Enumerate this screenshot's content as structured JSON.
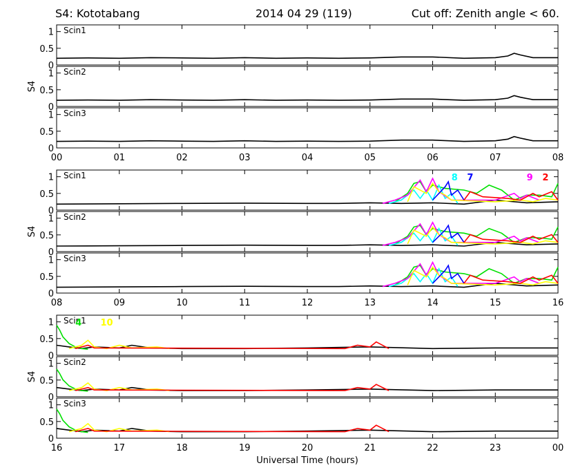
{
  "header": {
    "left": "S4: Kototabang",
    "middle": "2014 04 29 (119)",
    "right": "Cut off: Zenith angle < 60."
  },
  "colors": {
    "background": "#ffffff",
    "axes": "#000000",
    "black": "#000000",
    "green": "#00e000",
    "cyan": "#00ffff",
    "magenta": "#ff00ff",
    "yellow": "#ffff00",
    "blue": "#0000ff",
    "red": "#ff0000"
  },
  "chart_data": {
    "type": "line",
    "ylabel": "S4",
    "xlabel": "Universal Time (hours)",
    "ylim": [
      0,
      1.2
    ],
    "ytick_labels": [
      "0",
      "0.5",
      "1"
    ],
    "panel_labels": [
      "Scin1",
      "Scin2",
      "Scin3"
    ],
    "groups": [
      {
        "xlim": [
          0,
          8
        ],
        "xtick_labels": [
          "00",
          "01",
          "02",
          "03",
          "04",
          "05",
          "06",
          "07",
          "08"
        ],
        "prn_labels": [],
        "series": [
          {
            "color": "black",
            "x": [
              0,
              0.5,
              1,
              1.5,
              2,
              2.5,
              3,
              3.5,
              4,
              4.5,
              5,
              5.5,
              6,
              6.5,
              7,
              7.2,
              7.3,
              7.4,
              7.6,
              8
            ],
            "values": [
              0.2,
              0.21,
              0.2,
              0.22,
              0.21,
              0.2,
              0.22,
              0.2,
              0.21,
              0.2,
              0.21,
              0.24,
              0.24,
              0.2,
              0.22,
              0.27,
              0.35,
              0.3,
              0.22,
              0.22
            ]
          }
        ]
      },
      {
        "xlim": [
          8,
          16
        ],
        "xtick_labels": [
          "08",
          "09",
          "10",
          "11",
          "12",
          "13",
          "14",
          "15",
          "16"
        ],
        "prn_labels": [
          {
            "text": "8",
            "color": "cyan",
            "x": 14.3
          },
          {
            "text": "7",
            "color": "blue",
            "x": 14.55
          },
          {
            "text": "9",
            "color": "magenta",
            "x": 15.5
          },
          {
            "text": "2",
            "color": "red",
            "x": 15.75
          }
        ],
        "series": [
          {
            "color": "black",
            "x": [
              8,
              9,
              10,
              11,
              12,
              12.5,
              13,
              13.5,
              14,
              14.5,
              15,
              15.5,
              16
            ],
            "values": [
              0.18,
              0.19,
              0.2,
              0.21,
              0.2,
              0.2,
              0.22,
              0.2,
              0.22,
              0.18,
              0.3,
              0.22,
              0.25
            ]
          },
          {
            "color": "green",
            "x": [
              13.4,
              13.6,
              13.7,
              13.8,
              13.9,
              14.0,
              14.2,
              14.5,
              14.7,
              14.9,
              15.1,
              15.3,
              15.5,
              15.7,
              15.9,
              16
            ],
            "values": [
              0.25,
              0.5,
              0.8,
              0.85,
              0.55,
              0.75,
              0.65,
              0.6,
              0.5,
              0.75,
              0.6,
              0.3,
              0.45,
              0.45,
              0.4,
              0.8
            ]
          },
          {
            "color": "cyan",
            "x": [
              13.3,
              13.5,
              13.7,
              13.8,
              13.9,
              14.0,
              14.1,
              14.2,
              14.3,
              14.4
            ],
            "values": [
              0.2,
              0.3,
              0.6,
              0.35,
              0.6,
              0.3,
              0.75,
              0.35,
              0.5,
              0.2
            ]
          },
          {
            "color": "magenta",
            "x": [
              13.2,
              13.4,
              13.6,
              13.8,
              13.9,
              14.0,
              14.1,
              14.3,
              15.0,
              15.3,
              15.4,
              15.5,
              15.7
            ],
            "values": [
              0.2,
              0.3,
              0.45,
              0.9,
              0.55,
              0.95,
              0.55,
              0.3,
              0.3,
              0.5,
              0.35,
              0.45,
              0.3
            ]
          },
          {
            "color": "yellow",
            "x": [
              13.6,
              13.7,
              13.9,
              14.0,
              14.1,
              14.2,
              14.3,
              15.0,
              15.4,
              15.6,
              15.8,
              16
            ],
            "values": [
              0.25,
              0.7,
              0.5,
              0.8,
              0.55,
              0.45,
              0.3,
              0.25,
              0.3,
              0.25,
              0.35,
              0.3
            ]
          },
          {
            "color": "blue",
            "x": [
              14.0,
              14.1,
              14.2,
              14.25,
              14.3,
              14.4,
              14.5
            ],
            "values": [
              0.3,
              0.5,
              0.7,
              0.85,
              0.45,
              0.6,
              0.3
            ]
          },
          {
            "color": "red",
            "x": [
              14.5,
              14.6,
              14.8,
              15.2,
              15.4,
              15.6,
              15.7,
              15.9,
              16
            ],
            "values": [
              0.3,
              0.55,
              0.4,
              0.35,
              0.3,
              0.5,
              0.4,
              0.55,
              0.3
            ]
          }
        ]
      },
      {
        "xlim": [
          16,
          24
        ],
        "xtick_labels": [
          "16",
          "17",
          "18",
          "19",
          "20",
          "21",
          "22",
          "23",
          "00"
        ],
        "prn_labels": [
          {
            "text": "4",
            "color": "green",
            "x": 16.3
          },
          {
            "text": "10",
            "color": "yellow",
            "x": 16.7
          }
        ],
        "series": [
          {
            "color": "black",
            "x": [
              16,
              16.2,
              16.4,
              16.6,
              17,
              17.2,
              17.5,
              18,
              19,
              20,
              21,
              22,
              23,
              24
            ],
            "values": [
              0.3,
              0.25,
              0.2,
              0.25,
              0.22,
              0.3,
              0.22,
              0.2,
              0.2,
              0.22,
              0.25,
              0.2,
              0.22,
              0.22
            ]
          },
          {
            "color": "green",
            "x": [
              16.0,
              16.05,
              16.1,
              16.2,
              16.3,
              16.4,
              16.5
            ],
            "values": [
              0.9,
              0.75,
              0.55,
              0.35,
              0.25,
              0.2,
              0.18
            ]
          },
          {
            "color": "yellow",
            "x": [
              16.2,
              16.4,
              16.5,
              16.6,
              16.8,
              17.0,
              17.2,
              17.6,
              17.8
            ],
            "values": [
              0.2,
              0.3,
              0.45,
              0.25,
              0.2,
              0.3,
              0.22,
              0.25,
              0.2
            ]
          },
          {
            "color": "red",
            "x": [
              16.3,
              16.5,
              16.6,
              20.6,
              20.8,
              21.0,
              21.1,
              21.3
            ],
            "values": [
              0.2,
              0.3,
              0.22,
              0.2,
              0.3,
              0.25,
              0.4,
              0.2
            ]
          }
        ]
      }
    ]
  }
}
